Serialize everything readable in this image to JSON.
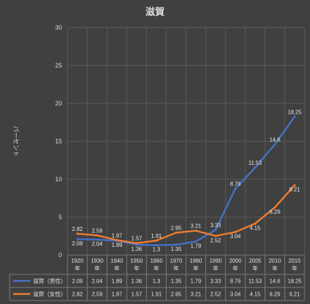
{
  "chart_data": {
    "type": "line",
    "title": "滋賀",
    "ylabel": "パーセント",
    "ylim": [
      0,
      30
    ],
    "yticks": [
      0,
      5,
      10,
      15,
      20,
      25,
      30
    ],
    "grid": true,
    "legend_placement": "data-table",
    "categories": [
      "1920年",
      "1930年",
      "1940年",
      "1950年",
      "1960年",
      "1970年",
      "1980年",
      "1990年",
      "2000年",
      "2005年",
      "2010年",
      "2015年"
    ],
    "category_lines": [
      [
        "1920",
        "年"
      ],
      [
        "1930",
        "年"
      ],
      [
        "1940",
        "年"
      ],
      [
        "1950",
        "年"
      ],
      [
        "1960",
        "年"
      ],
      [
        "1970",
        "年"
      ],
      [
        "1980",
        "年"
      ],
      [
        "1990",
        "年"
      ],
      [
        "2000",
        "年"
      ],
      [
        "2005",
        "年"
      ],
      [
        "2010",
        "年"
      ],
      [
        "2015",
        "年"
      ]
    ],
    "series": [
      {
        "name": "滋賀（男性）",
        "color": "#4472c4",
        "values": [
          2.09,
          2.04,
          1.89,
          1.36,
          1.3,
          1.35,
          1.79,
          3.33,
          8.76,
          11.53,
          14.6,
          18.25
        ]
      },
      {
        "name": "滋賀（女性）",
        "color": "#ed7d31",
        "values": [
          2.82,
          2.59,
          1.97,
          1.57,
          1.91,
          2.95,
          3.21,
          2.52,
          3.04,
          4.15,
          6.29,
          9.21
        ]
      }
    ]
  }
}
